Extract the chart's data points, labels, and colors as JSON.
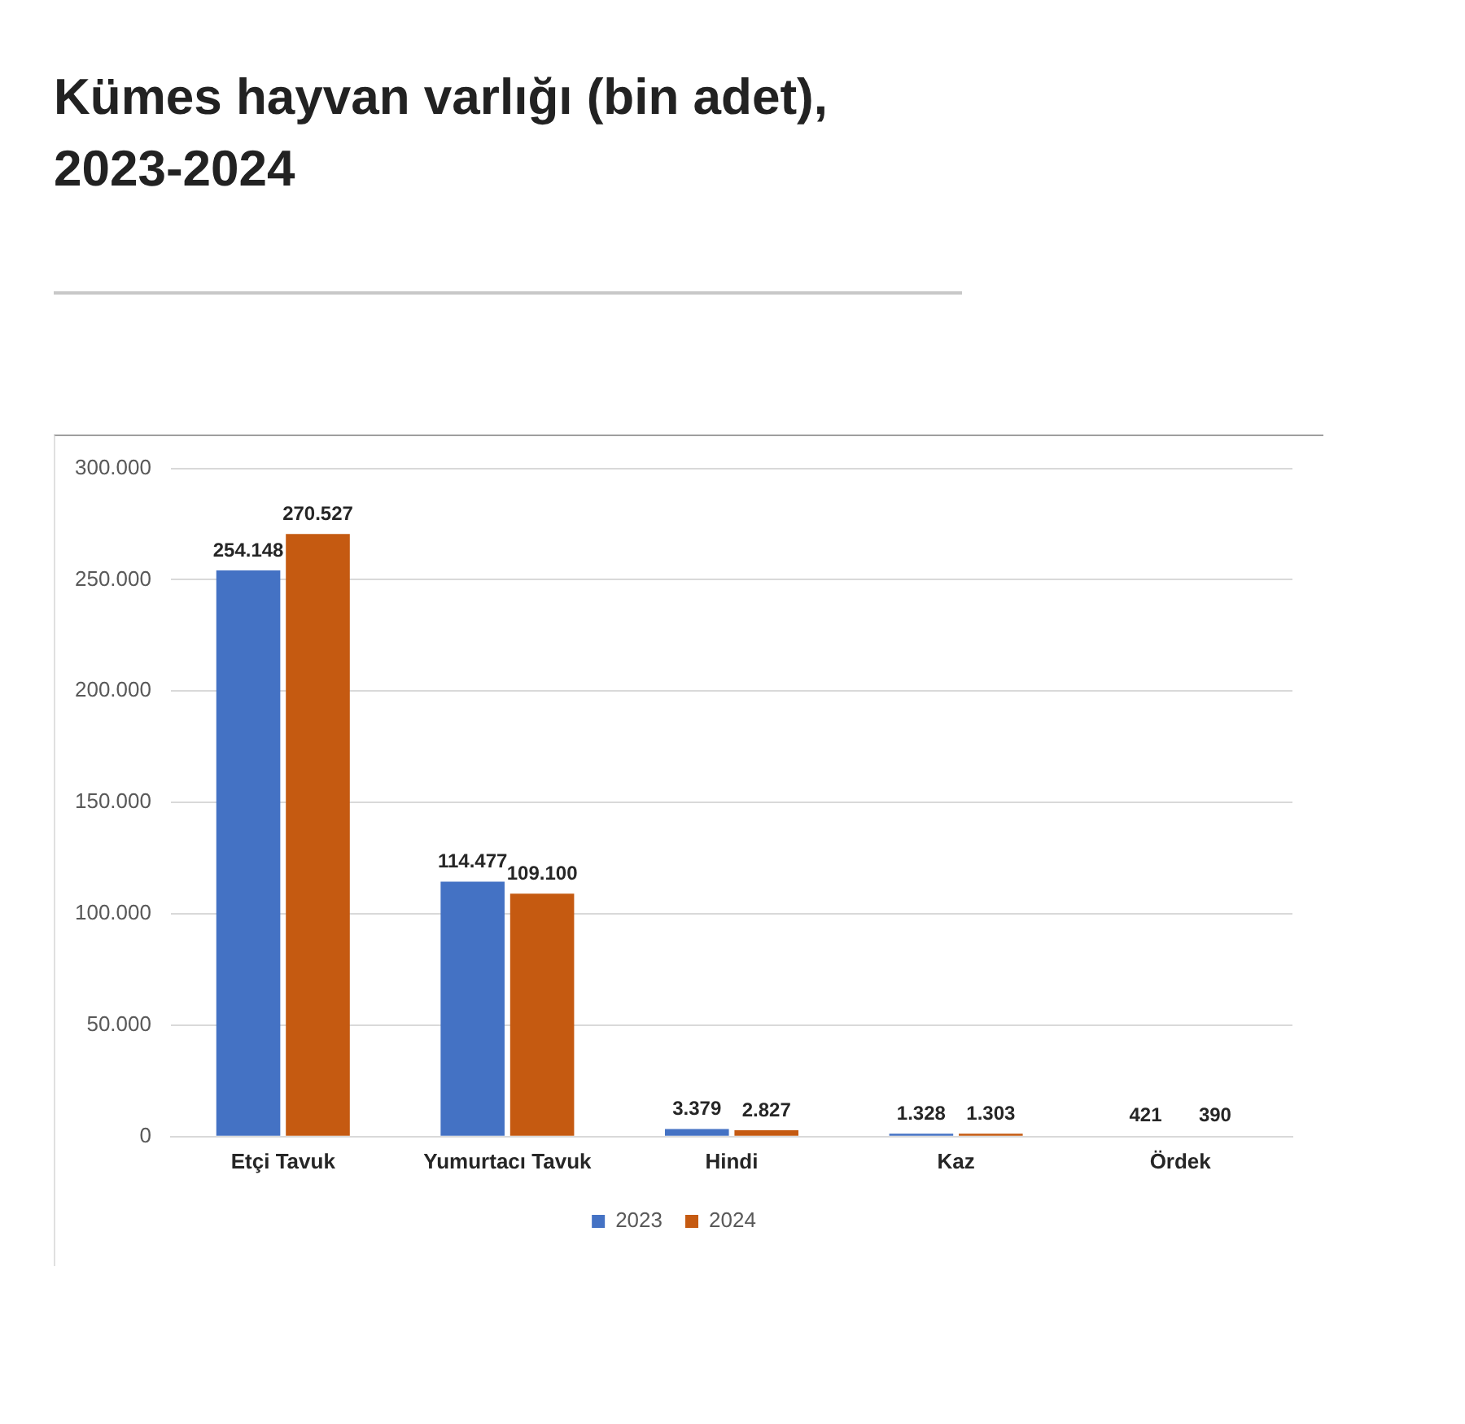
{
  "chart_data": {
    "type": "bar",
    "title": "Kümes hayvan varlığı (bin adet), 2023-2024",
    "categories": [
      "Etçi Tavuk",
      "Yumurtacı Tavuk",
      "Hindi",
      "Kaz",
      "Ördek"
    ],
    "series": [
      {
        "name": "2023",
        "color": "#4472c4",
        "values": [
          254148,
          114477,
          3379,
          1328,
          421
        ],
        "value_labels": [
          "254.148",
          "114.477",
          "3.379",
          "1.328",
          "421"
        ]
      },
      {
        "name": "2024",
        "color": "#c55a11",
        "values": [
          270527,
          109100,
          2827,
          1303,
          390
        ],
        "value_labels": [
          "270.527",
          "109.100",
          "2.827",
          "1.303",
          "390"
        ]
      }
    ],
    "ylim": [
      0,
      300000
    ],
    "yticks": [
      {
        "value": 0,
        "label": "0"
      },
      {
        "value": 50000,
        "label": "50.000"
      },
      {
        "value": 100000,
        "label": "100.000"
      },
      {
        "value": 150000,
        "label": "150.000"
      },
      {
        "value": 200000,
        "label": "200.000"
      },
      {
        "value": 250000,
        "label": "250.000"
      },
      {
        "value": 300000,
        "label": "300.000"
      }
    ],
    "grid": "y",
    "legend": "bottom"
  }
}
